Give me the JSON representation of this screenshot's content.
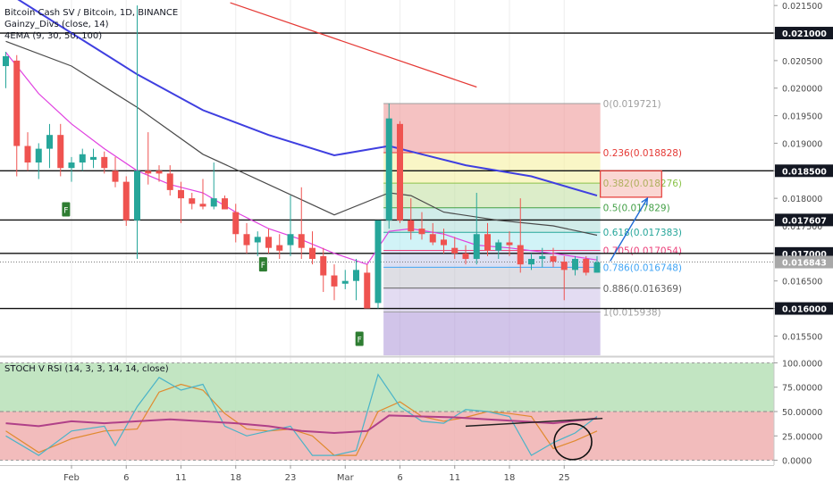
{
  "legend": {
    "title": "Bitcoin Cash SV / Bitcoin, 1D, BINANCE",
    "indicator1": "Gainzy_Divs (close, 14)",
    "indicator2": "4EMA (9, 30, 50, 100)"
  },
  "rsi_legend": "STOCH V RSI (14, 3, 3, 14, 14, close)",
  "chart_data": [
    {
      "type": "candlestick",
      "title": "Bitcoin Cash SV / Bitcoin, 1D, BINANCE",
      "ylim": [
        0.01515,
        0.0216
      ],
      "y_ticks": [
        "0.021500",
        "0.021000",
        "0.020500",
        "0.020000",
        "0.019500",
        "0.019000",
        "0.018500",
        "0.018000",
        "0.017500",
        "0.017000",
        "0.016500",
        "0.016000",
        "0.015500"
      ],
      "x_ticks": [
        "Feb",
        "6",
        "11",
        "18",
        "23",
        "Mar",
        "6",
        "11",
        "18",
        "25"
      ],
      "x_tick_index": [
        6,
        11,
        16,
        21,
        26,
        31,
        36,
        41,
        46,
        51
      ],
      "levels_highlighted": [
        {
          "label": "0.021000",
          "value": 0.021
        },
        {
          "label": "0.018500",
          "value": 0.0185
        },
        {
          "label": "0.017607",
          "value": 0.017607
        },
        {
          "label": "0.017000",
          "value": 0.017
        },
        {
          "label": "0.016000",
          "value": 0.016
        }
      ],
      "last_price": {
        "label": "0.016843",
        "value": 0.016843
      },
      "candles": [
        {
          "o": 0.0204,
          "h": 0.02066,
          "l": 0.02,
          "c": 0.02058
        },
        {
          "o": 0.0205,
          "h": 0.0206,
          "l": 0.0184,
          "c": 0.01895
        },
        {
          "o": 0.01895,
          "h": 0.0192,
          "l": 0.0185,
          "c": 0.01865
        },
        {
          "o": 0.01865,
          "h": 0.019,
          "l": 0.01835,
          "c": 0.0189
        },
        {
          "o": 0.0189,
          "h": 0.01935,
          "l": 0.01855,
          "c": 0.01915
        },
        {
          "o": 0.01915,
          "h": 0.01935,
          "l": 0.0184,
          "c": 0.01855
        },
        {
          "o": 0.01855,
          "h": 0.01875,
          "l": 0.0183,
          "c": 0.01865
        },
        {
          "o": 0.01865,
          "h": 0.0189,
          "l": 0.0185,
          "c": 0.0188
        },
        {
          "o": 0.0187,
          "h": 0.0189,
          "l": 0.01855,
          "c": 0.01875
        },
        {
          "o": 0.01875,
          "h": 0.01885,
          "l": 0.01845,
          "c": 0.01855
        },
        {
          "o": 0.0185,
          "h": 0.01875,
          "l": 0.0182,
          "c": 0.0183
        },
        {
          "o": 0.0183,
          "h": 0.0184,
          "l": 0.0175,
          "c": 0.0176
        },
        {
          "o": 0.0176,
          "h": 0.0215,
          "l": 0.0169,
          "c": 0.0185
        },
        {
          "o": 0.0185,
          "h": 0.0192,
          "l": 0.01825,
          "c": 0.01845
        },
        {
          "o": 0.0185,
          "h": 0.0186,
          "l": 0.0183,
          "c": 0.01845
        },
        {
          "o": 0.01845,
          "h": 0.0186,
          "l": 0.01805,
          "c": 0.01815
        },
        {
          "o": 0.01815,
          "h": 0.0183,
          "l": 0.01755,
          "c": 0.018
        },
        {
          "o": 0.018,
          "h": 0.0181,
          "l": 0.0178,
          "c": 0.0179
        },
        {
          "o": 0.0179,
          "h": 0.01835,
          "l": 0.0178,
          "c": 0.01785
        },
        {
          "o": 0.01785,
          "h": 0.01865,
          "l": 0.0178,
          "c": 0.018
        },
        {
          "o": 0.018,
          "h": 0.01805,
          "l": 0.0178,
          "c": 0.0178
        },
        {
          "o": 0.01775,
          "h": 0.0179,
          "l": 0.0172,
          "c": 0.01735
        },
        {
          "o": 0.01735,
          "h": 0.01755,
          "l": 0.017,
          "c": 0.01715
        },
        {
          "o": 0.0172,
          "h": 0.0174,
          "l": 0.01695,
          "c": 0.0173
        },
        {
          "o": 0.0173,
          "h": 0.01745,
          "l": 0.017,
          "c": 0.0171
        },
        {
          "o": 0.01715,
          "h": 0.01735,
          "l": 0.0169,
          "c": 0.01705
        },
        {
          "o": 0.01715,
          "h": 0.01805,
          "l": 0.01695,
          "c": 0.01735
        },
        {
          "o": 0.01735,
          "h": 0.0182,
          "l": 0.0169,
          "c": 0.0171
        },
        {
          "o": 0.0171,
          "h": 0.0174,
          "l": 0.0168,
          "c": 0.0169
        },
        {
          "o": 0.01695,
          "h": 0.0171,
          "l": 0.0163,
          "c": 0.0166
        },
        {
          "o": 0.0166,
          "h": 0.0168,
          "l": 0.01615,
          "c": 0.0164
        },
        {
          "o": 0.01645,
          "h": 0.0167,
          "l": 0.01635,
          "c": 0.0165
        },
        {
          "o": 0.0165,
          "h": 0.0169,
          "l": 0.01615,
          "c": 0.0167
        },
        {
          "o": 0.01665,
          "h": 0.0168,
          "l": 0.01605,
          "c": 0.016
        },
        {
          "o": 0.0161,
          "h": 0.0176,
          "l": 0.016,
          "c": 0.0176
        },
        {
          "o": 0.0176,
          "h": 0.01972,
          "l": 0.01745,
          "c": 0.01945
        },
        {
          "o": 0.01935,
          "h": 0.0194,
          "l": 0.01755,
          "c": 0.0176
        },
        {
          "o": 0.0176,
          "h": 0.018,
          "l": 0.01725,
          "c": 0.0174
        },
        {
          "o": 0.01745,
          "h": 0.01775,
          "l": 0.01725,
          "c": 0.01735
        },
        {
          "o": 0.01735,
          "h": 0.01755,
          "l": 0.01715,
          "c": 0.0172
        },
        {
          "o": 0.01725,
          "h": 0.01745,
          "l": 0.017,
          "c": 0.01715
        },
        {
          "o": 0.0171,
          "h": 0.0173,
          "l": 0.0169,
          "c": 0.017
        },
        {
          "o": 0.017,
          "h": 0.01715,
          "l": 0.0168,
          "c": 0.0169
        },
        {
          "o": 0.0169,
          "h": 0.0181,
          "l": 0.0168,
          "c": 0.01735
        },
        {
          "o": 0.01735,
          "h": 0.01755,
          "l": 0.01695,
          "c": 0.01705
        },
        {
          "o": 0.01705,
          "h": 0.01725,
          "l": 0.0169,
          "c": 0.0172
        },
        {
          "o": 0.0172,
          "h": 0.0174,
          "l": 0.01695,
          "c": 0.01715
        },
        {
          "o": 0.01715,
          "h": 0.018,
          "l": 0.01665,
          "c": 0.0168
        },
        {
          "o": 0.0168,
          "h": 0.017,
          "l": 0.0167,
          "c": 0.0169
        },
        {
          "o": 0.0169,
          "h": 0.0171,
          "l": 0.01675,
          "c": 0.01695
        },
        {
          "o": 0.01695,
          "h": 0.0171,
          "l": 0.01675,
          "c": 0.01685
        },
        {
          "o": 0.01685,
          "h": 0.01695,
          "l": 0.01615,
          "c": 0.0167
        },
        {
          "o": 0.0167,
          "h": 0.01695,
          "l": 0.0166,
          "c": 0.0169
        },
        {
          "o": 0.0169,
          "h": 0.01695,
          "l": 0.0166,
          "c": 0.01665
        },
        {
          "o": 0.01665,
          "h": 0.01695,
          "l": 0.01665,
          "c": 0.01684
        }
      ],
      "ema": [
        {
          "color": "#e53935",
          "x": [
            20.5,
            43
          ],
          "values": [
            0.02155,
            0.02002
          ]
        },
        {
          "color": "#3f3fe0",
          "x": [
            0,
            6,
            12,
            18,
            24,
            30,
            35,
            38,
            42,
            48,
            54
          ],
          "values": [
            0.02175,
            0.021,
            0.02025,
            0.0196,
            0.01915,
            0.01878,
            0.01895,
            0.0188,
            0.0186,
            0.0184,
            0.01805
          ]
        },
        {
          "color": "#4a4a4a",
          "x": [
            0,
            6,
            12,
            18,
            24,
            30,
            35,
            37,
            40,
            45,
            50,
            54
          ],
          "values": [
            0.02085,
            0.0204,
            0.01965,
            0.0188,
            0.01825,
            0.0177,
            0.0181,
            0.01805,
            0.01775,
            0.0176,
            0.0175,
            0.01733
          ]
        },
        {
          "color": "#e040e0",
          "x": [
            0,
            3,
            6,
            9,
            12,
            15,
            18,
            21,
            24,
            27,
            30,
            33,
            35,
            37,
            40,
            43,
            46,
            50,
            54
          ],
          "values": [
            0.02065,
            0.0199,
            0.01935,
            0.0189,
            0.0185,
            0.01825,
            0.0181,
            0.01775,
            0.01745,
            0.01725,
            0.017,
            0.0168,
            0.0174,
            0.01745,
            0.01735,
            0.01715,
            0.0171,
            0.017,
            0.01688
          ]
        }
      ],
      "fibonacci": {
        "start_index": 34.5,
        "end_index": 54.3,
        "levels": [
          {
            "label": "0(0.019721)",
            "value": 0.019721,
            "color": "#9e9e9e"
          },
          {
            "label": "0.236(0.018828)",
            "value": 0.018828,
            "color": "#e53935"
          },
          {
            "label": "0.382(0.018276)",
            "value": 0.018276,
            "color": "#8bc34a"
          },
          {
            "label": "0.5(0.017829)",
            "value": 0.017829,
            "color": "#43a047"
          },
          {
            "label": "0.618(0.017383)",
            "value": 0.017383,
            "color": "#26a69a"
          },
          {
            "label": "0.705(0.017054)",
            "value": 0.017054,
            "color": "#ec407a"
          },
          {
            "label": "0.786(0.016748)",
            "value": 0.016748,
            "color": "#42a5f5"
          },
          {
            "label": "0.886(0.016369)",
            "value": 0.016369,
            "color": "#616161"
          },
          {
            "label": "1(0.015938)",
            "value": 0.015938,
            "color": "#9e9e9e"
          }
        ],
        "zones": [
          {
            "from": 0.019721,
            "to": 0.018828,
            "color": "#ef9a9a"
          },
          {
            "from": 0.018828,
            "to": 0.018276,
            "color": "#f5f0a0"
          },
          {
            "from": 0.018276,
            "to": 0.017829,
            "color": "#c5e1a5"
          },
          {
            "from": 0.017829,
            "to": 0.017383,
            "color": "#b2dfdb"
          },
          {
            "from": 0.017383,
            "to": 0.017054,
            "color": "#b2ebf2"
          },
          {
            "from": 0.017054,
            "to": 0.016748,
            "color": "#c5cae9"
          },
          {
            "from": 0.016748,
            "to": 0.016369,
            "color": "#c8c8d2"
          },
          {
            "from": 0.016369,
            "to": 0.015938,
            "color": "#d1c4e9"
          },
          {
            "from": 0.015938,
            "to": 0.01515,
            "color": "#b39ddb"
          }
        ]
      },
      "target_box": {
        "x0": 54.3,
        "x1": 59.9,
        "y0": 0.0185,
        "y1": 0.01802,
        "color": "#e53935"
      },
      "projection_arrow": {
        "x0": 55.2,
        "y0": 0.01686,
        "x1": 58.6,
        "y1": 0.018,
        "color": "#1e6bd6"
      },
      "signals": [
        {
          "label": "F",
          "index": 5.5,
          "value": 0.0178
        },
        {
          "label": "F",
          "index": 23.5,
          "value": 0.0168
        },
        {
          "label": "F",
          "index": 32.3,
          "value": 0.01545
        }
      ]
    },
    {
      "type": "line",
      "title": "STOCH V RSI (14, 3, 3, 14, 14, close)",
      "ylim": [
        -5,
        105
      ],
      "y_ticks": [
        "100.0000",
        "75.00000",
        "50.00000",
        "25.00000",
        "0.0000"
      ],
      "overbought": 50,
      "zones": [
        {
          "from": 100,
          "to": 50,
          "color": "#b7e0b7"
        },
        {
          "from": 50,
          "to": 0,
          "color": "#f0b0b0"
        }
      ],
      "series": [
        {
          "color": "#e08a2e",
          "x": [
            0,
            3,
            6,
            9,
            12,
            14,
            16,
            18,
            20,
            22,
            24,
            26,
            28,
            30,
            32,
            34,
            36,
            38,
            40,
            42,
            44,
            46,
            48,
            50,
            52,
            54
          ],
          "values": [
            30,
            8,
            22,
            30,
            32,
            70,
            78,
            72,
            48,
            32,
            30,
            32,
            25,
            5,
            5,
            50,
            60,
            45,
            40,
            44,
            50,
            48,
            45,
            12,
            20,
            30
          ]
        },
        {
          "color": "#4ab3c8",
          "x": [
            0,
            3,
            6,
            9,
            10,
            12,
            14,
            16,
            18,
            20,
            22,
            24,
            26,
            28,
            30,
            32,
            34,
            36,
            38,
            40,
            42,
            44,
            46,
            48,
            50,
            52,
            54
          ],
          "values": [
            25,
            5,
            30,
            35,
            15,
            55,
            85,
            72,
            78,
            35,
            25,
            30,
            35,
            5,
            5,
            10,
            88,
            55,
            40,
            38,
            52,
            50,
            45,
            5,
            18,
            28,
            45
          ]
        },
        {
          "color": "#b04088",
          "x": [
            0,
            3,
            6,
            9,
            12,
            15,
            18,
            21,
            24,
            27,
            30,
            33,
            35,
            38,
            41,
            44,
            47,
            50,
            54
          ],
          "values": [
            38,
            35,
            40,
            38,
            40,
            42,
            40,
            38,
            35,
            30,
            28,
            30,
            46,
            45,
            44,
            42,
            40,
            38,
            43
          ]
        }
      ],
      "trendline": {
        "x0": 42,
        "y0": 35,
        "x1": 54.5,
        "y1": 43,
        "color": "#222222"
      },
      "circle_marker": {
        "x": 51.8,
        "y": 19,
        "color": "#111111"
      }
    }
  ]
}
